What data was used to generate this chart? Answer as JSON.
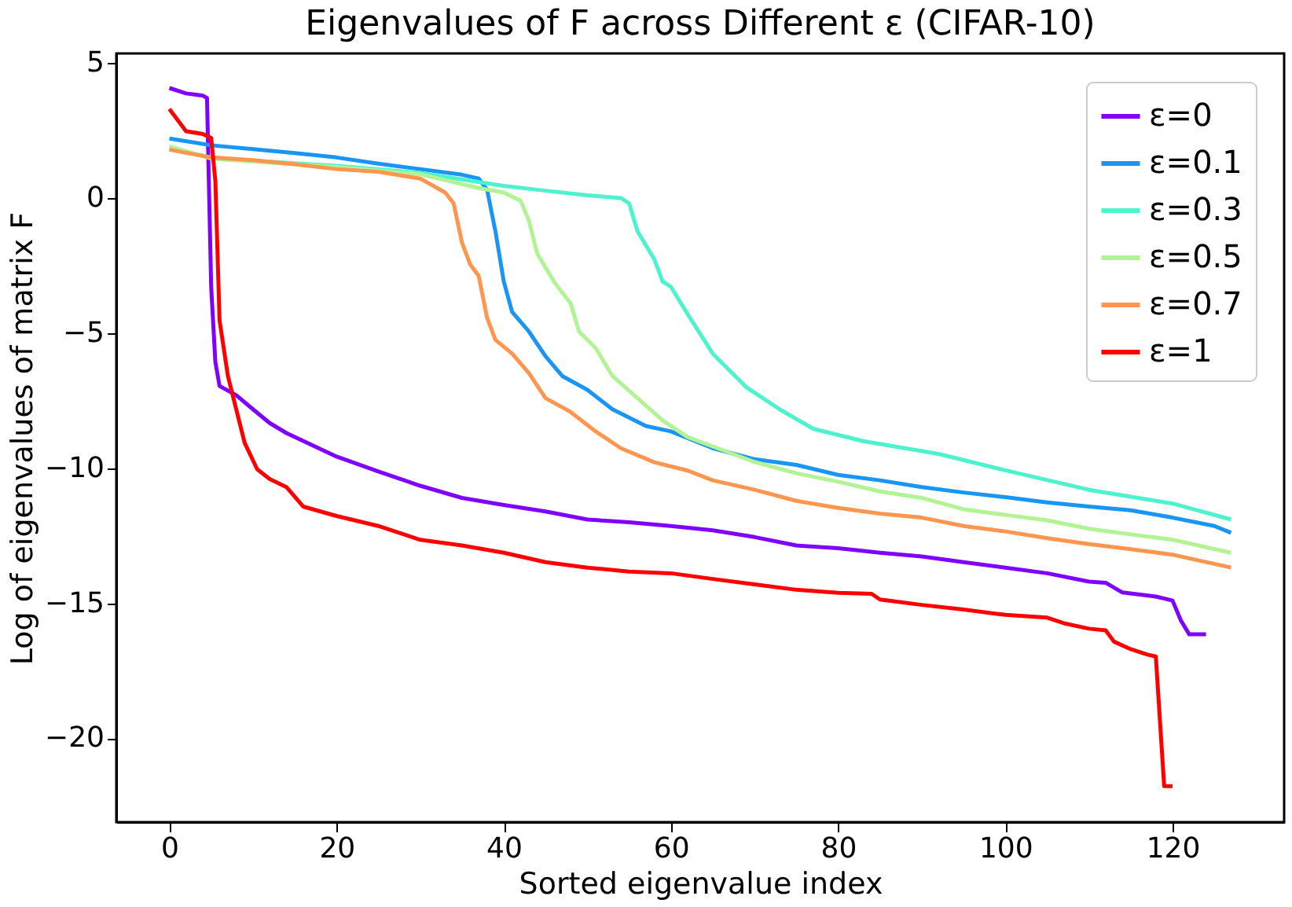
{
  "chart_data": {
    "type": "line",
    "title": "Eigenvalues of F across Different ε (CIFAR-10)",
    "xlabel": "Sorted eigenvalue index",
    "ylabel": "Log of eigenvalues of matrix F",
    "xlim": [
      -6.35,
      133.35
    ],
    "ylim": [
      -23.1,
      5.35
    ],
    "xticks": [
      0,
      20,
      40,
      60,
      80,
      100,
      120
    ],
    "yticks": [
      -20,
      -15,
      -10,
      -5,
      0,
      5
    ],
    "grid": false,
    "legend": "top right",
    "line_style": "solid",
    "marker": "none",
    "series": [
      {
        "name": "ε=0",
        "color": "#8000ff",
        "x": [
          0,
          2,
          4,
          4.5,
          5,
          5.5,
          6,
          8,
          10,
          12,
          14,
          20,
          25,
          30,
          35,
          40,
          45,
          50,
          55,
          60,
          65,
          70,
          75,
          80,
          85,
          90,
          95,
          100,
          105,
          110,
          112,
          114,
          118,
          120,
          121,
          122,
          124
        ],
        "values": [
          4.07,
          3.87,
          3.79,
          3.7,
          -3.3,
          -6.07,
          -6.96,
          -7.3,
          -7.82,
          -8.33,
          -8.7,
          -9.57,
          -10.12,
          -10.65,
          -11.1,
          -11.36,
          -11.6,
          -11.9,
          -12.0,
          -12.14,
          -12.3,
          -12.55,
          -12.86,
          -12.96,
          -13.13,
          -13.27,
          -13.48,
          -13.68,
          -13.89,
          -14.2,
          -14.24,
          -14.6,
          -14.75,
          -14.9,
          -15.64,
          -16.15,
          -16.15
        ]
      },
      {
        "name": "ε=0.1",
        "color": "#1996f3",
        "x": [
          0,
          5,
          10,
          15,
          20,
          25,
          30,
          35,
          37,
          38,
          39,
          40,
          41,
          43,
          45,
          47,
          50,
          53,
          57,
          60,
          65,
          70,
          75,
          80,
          85,
          90,
          95,
          100,
          105,
          110,
          115,
          120,
          125,
          127
        ],
        "values": [
          2.2,
          1.95,
          1.81,
          1.66,
          1.5,
          1.27,
          1.07,
          0.86,
          0.72,
          0.31,
          -1.23,
          -3.09,
          -4.22,
          -4.94,
          -5.86,
          -6.59,
          -7.1,
          -7.82,
          -8.44,
          -8.64,
          -9.26,
          -9.67,
          -9.88,
          -10.25,
          -10.45,
          -10.7,
          -10.9,
          -11.07,
          -11.27,
          -11.42,
          -11.56,
          -11.83,
          -12.14,
          -12.39
        ]
      },
      {
        "name": "ε=0.3",
        "color": "#4df3ce",
        "x": [
          0,
          5,
          10,
          20,
          30,
          40,
          45,
          50,
          54,
          55,
          56,
          57,
          58,
          59,
          60,
          62,
          65,
          69,
          73,
          77,
          83,
          92,
          100,
          110,
          120,
          127
        ],
        "values": [
          1.85,
          1.5,
          1.38,
          1.19,
          0.93,
          0.45,
          0.27,
          0.1,
          0,
          -0.2,
          -1.23,
          -1.75,
          -2.26,
          -3.09,
          -3.29,
          -4.3,
          -5.76,
          -7.0,
          -7.82,
          -8.54,
          -9.0,
          -9.47,
          -10.08,
          -10.8,
          -11.31,
          -11.9
        ]
      },
      {
        "name": "ε=0.5",
        "color": "#b2f396",
        "x": [
          0,
          5,
          10,
          20,
          30,
          37,
          40,
          42,
          43,
          44,
          46,
          48,
          49,
          51,
          53,
          56,
          59,
          62,
          70,
          75,
          80,
          85,
          90,
          95,
          100,
          105,
          110,
          115,
          120,
          127
        ],
        "values": [
          1.91,
          1.46,
          1.35,
          1.15,
          0.88,
          0.37,
          0.2,
          -0.1,
          -0.83,
          -2.06,
          -3.09,
          -3.91,
          -4.94,
          -5.56,
          -6.59,
          -7.41,
          -8.23,
          -8.85,
          -9.77,
          -10.19,
          -10.5,
          -10.86,
          -11.1,
          -11.52,
          -11.73,
          -11.93,
          -12.24,
          -12.45,
          -12.65,
          -13.13
        ]
      },
      {
        "name": "ε=0.7",
        "color": "#ff964f",
        "x": [
          0,
          5,
          10,
          15,
          20,
          25,
          30,
          33,
          34,
          35,
          36,
          37,
          38,
          39,
          41,
          43,
          45,
          48,
          51,
          54,
          58,
          62,
          65,
          70,
          75,
          80,
          85,
          90,
          95,
          100,
          105,
          110,
          115,
          120,
          127
        ],
        "values": [
          1.79,
          1.5,
          1.4,
          1.25,
          1.07,
          0.97,
          0.72,
          0.2,
          -0.2,
          -1.65,
          -2.47,
          -2.88,
          -4.43,
          -5.25,
          -5.76,
          -6.48,
          -7.41,
          -7.92,
          -8.64,
          -9.26,
          -9.78,
          -10.09,
          -10.45,
          -10.8,
          -11.21,
          -11.47,
          -11.68,
          -11.83,
          -12.14,
          -12.34,
          -12.59,
          -12.81,
          -13.0,
          -13.2,
          -13.68
        ]
      },
      {
        "name": "ε=1",
        "color": "#ff0000",
        "x": [
          0,
          2,
          4,
          5,
          5.5,
          6,
          7,
          9,
          10.5,
          12,
          14,
          16,
          20,
          25,
          30,
          35,
          40,
          45,
          50,
          55,
          60,
          65,
          70,
          75,
          80,
          84,
          85,
          90,
          95,
          100,
          105,
          107,
          110,
          112,
          113,
          115,
          117,
          118,
          119,
          120
        ],
        "values": [
          3.29,
          2.47,
          2.37,
          2.22,
          0.63,
          -4.53,
          -6.59,
          -9.06,
          -10.04,
          -10.4,
          -10.7,
          -11.42,
          -11.77,
          -12.14,
          -12.65,
          -12.86,
          -13.13,
          -13.48,
          -13.68,
          -13.83,
          -13.89,
          -14.1,
          -14.3,
          -14.5,
          -14.61,
          -14.65,
          -14.86,
          -15.06,
          -15.23,
          -15.43,
          -15.53,
          -15.74,
          -15.94,
          -16.0,
          -16.42,
          -16.7,
          -16.9,
          -16.97,
          -21.77,
          -21.77
        ]
      }
    ]
  }
}
